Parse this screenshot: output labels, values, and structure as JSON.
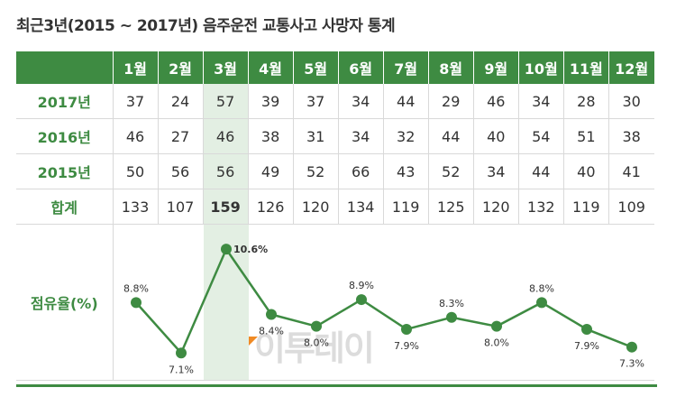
{
  "title": "최근3년(2015 ~ 2017년) 음주운전 교통사고 사망자 통계",
  "columns": [
    "1월",
    "2월",
    "3월",
    "4월",
    "5월",
    "6월",
    "7월",
    "8월",
    "9월",
    "10월",
    "11월",
    "12월"
  ],
  "rows": [
    {
      "label": "2017년",
      "values": [
        "37",
        "24",
        "57",
        "39",
        "37",
        "34",
        "44",
        "29",
        "46",
        "34",
        "28",
        "30"
      ]
    },
    {
      "label": "2016년",
      "values": [
        "46",
        "27",
        "46",
        "38",
        "31",
        "34",
        "32",
        "44",
        "40",
        "54",
        "51",
        "38"
      ]
    },
    {
      "label": "2015년",
      "values": [
        "50",
        "56",
        "56",
        "49",
        "52",
        "66",
        "43",
        "52",
        "34",
        "44",
        "40",
        "41"
      ]
    },
    {
      "label": "합계",
      "values": [
        "133",
        "107",
        "159",
        "126",
        "120",
        "134",
        "119",
        "125",
        "120",
        "132",
        "119",
        "109"
      ]
    }
  ],
  "share_label": "점유율(%)",
  "watermark": "이투데이",
  "colors": {
    "green": "#3e8b42",
    "highlight": "#e3efe3",
    "orange": "#f08a24"
  },
  "chart_data": {
    "type": "line",
    "categories": [
      "1월",
      "2월",
      "3월",
      "4월",
      "5월",
      "6월",
      "7월",
      "8월",
      "9월",
      "10월",
      "11월",
      "12월"
    ],
    "series": [
      {
        "values": [
          8.8,
          7.1,
          10.6,
          8.4,
          8.0,
          8.9,
          7.9,
          8.3,
          8.0,
          8.8,
          7.9,
          7.3
        ]
      }
    ],
    "data_labels": [
      "8.8%",
      "7.1%",
      "10.6%",
      "8.4%",
      "8.0%",
      "8.9%",
      "7.9%",
      "8.3%",
      "8.0%",
      "8.8%",
      "7.9%",
      "7.3%"
    ],
    "highlight_category": "3월",
    "ylim": [
      6.5,
      11.0
    ],
    "grid": false
  }
}
